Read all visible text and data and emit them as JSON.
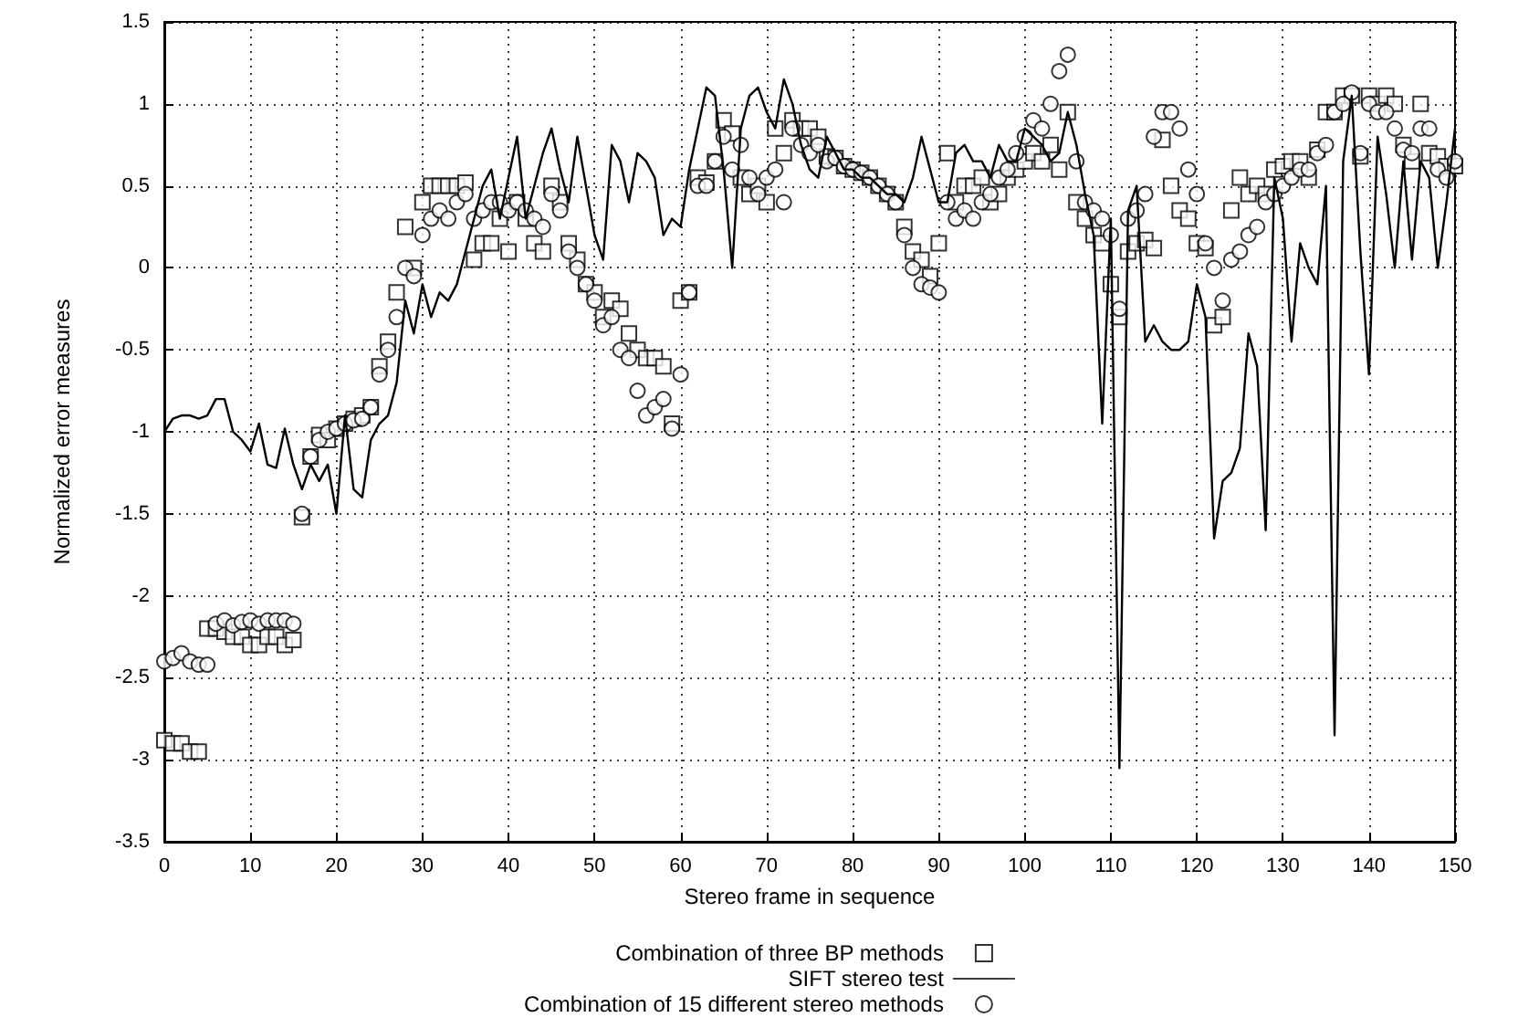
{
  "chart_data": {
    "type": "scatter",
    "xlabel": "Stereo frame in sequence",
    "ylabel": "Normalized error measures",
    "x": [
      0,
      1,
      2,
      3,
      4,
      5,
      6,
      7,
      8,
      9,
      10,
      11,
      12,
      13,
      14,
      15,
      16,
      17,
      18,
      19,
      20,
      21,
      22,
      23,
      24,
      25,
      26,
      27,
      28,
      29,
      30,
      31,
      32,
      33,
      34,
      35,
      36,
      37,
      38,
      39,
      40,
      41,
      42,
      43,
      44,
      45,
      46,
      47,
      48,
      49,
      50,
      51,
      52,
      53,
      54,
      55,
      56,
      57,
      58,
      59,
      60,
      61,
      62,
      63,
      64,
      65,
      66,
      67,
      68,
      69,
      70,
      71,
      72,
      73,
      74,
      75,
      76,
      77,
      78,
      79,
      80,
      81,
      82,
      83,
      84,
      85,
      86,
      87,
      88,
      89,
      90,
      91,
      92,
      93,
      94,
      95,
      96,
      97,
      98,
      99,
      100,
      101,
      102,
      103,
      104,
      105,
      106,
      107,
      108,
      109,
      110,
      111,
      112,
      113,
      114,
      115,
      116,
      117,
      118,
      119,
      120,
      121,
      122,
      123,
      124,
      125,
      126,
      127,
      128,
      129,
      130,
      131,
      132,
      133,
      134,
      135,
      136,
      137,
      138,
      139,
      140,
      141,
      142,
      143,
      144,
      145,
      146,
      147,
      148,
      149,
      150
    ],
    "series": [
      {
        "name": "Combination of three BP methods",
        "type": "scatter",
        "marker": "square",
        "color": "#000000",
        "values": [
          -2.88,
          -2.9,
          -2.9,
          -2.95,
          -2.95,
          -2.2,
          -2.2,
          -2.22,
          -2.25,
          -2.25,
          -2.3,
          -2.3,
          -2.25,
          -2.25,
          -2.3,
          -2.27,
          -1.52,
          -1.15,
          -1.02,
          -1.05,
          -0.98,
          -0.95,
          -0.92,
          -0.9,
          -0.85,
          -0.6,
          -0.45,
          -0.15,
          0.25,
          0.0,
          0.4,
          0.5,
          0.5,
          0.5,
          0.5,
          0.52,
          0.05,
          0.15,
          0.15,
          0.3,
          0.1,
          0.4,
          0.3,
          0.15,
          0.1,
          0.5,
          0.4,
          0.15,
          0.05,
          -0.1,
          -0.15,
          -0.3,
          -0.2,
          -0.25,
          -0.4,
          -0.5,
          -0.55,
          -0.55,
          -0.6,
          -0.95,
          -0.2,
          -0.15,
          0.55,
          0.52,
          0.65,
          0.9,
          0.82,
          0.55,
          0.45,
          0.5,
          0.4,
          0.85,
          0.7,
          0.9,
          0.85,
          0.85,
          0.8,
          0.68,
          0.67,
          0.62,
          0.6,
          0.58,
          0.55,
          0.5,
          0.45,
          0.4,
          0.25,
          0.1,
          0.05,
          -0.05,
          0.15,
          0.7,
          0.4,
          0.5,
          0.5,
          0.55,
          0.4,
          0.45,
          0.55,
          0.6,
          0.65,
          0.7,
          0.65,
          0.75,
          0.6,
          0.95,
          0.4,
          0.3,
          0.2,
          0.15,
          -0.1,
          -0.3,
          0.1,
          0.15,
          0.17,
          0.12,
          0.78,
          0.5,
          0.35,
          0.3,
          0.15,
          0.12,
          -0.35,
          -0.3,
          0.35,
          0.55,
          0.45,
          0.5,
          0.45,
          0.6,
          0.62,
          0.65,
          0.65,
          0.55,
          0.72,
          0.95,
          0.95,
          1.05,
          1.05,
          0.68,
          1.05,
          1.0,
          1.05,
          1.0,
          0.75,
          0.65,
          1.0,
          0.7,
          0.68,
          0.62,
          0.62
        ]
      },
      {
        "name": "SIFT stereo test",
        "type": "line",
        "marker": "none",
        "line_style": "solid",
        "color": "#000000",
        "values": [
          -1.0,
          -0.92,
          -0.9,
          -0.9,
          -0.92,
          -0.9,
          -0.8,
          -0.8,
          -1.0,
          -1.05,
          -1.12,
          -0.95,
          -1.2,
          -1.22,
          -0.98,
          -1.2,
          -1.35,
          -1.2,
          -1.3,
          -1.2,
          -1.5,
          -0.9,
          -1.35,
          -1.4,
          -1.05,
          -0.95,
          -0.9,
          -0.7,
          -0.2,
          -0.4,
          -0.1,
          -0.3,
          -0.15,
          -0.2,
          -0.1,
          0.1,
          0.3,
          0.5,
          0.6,
          0.3,
          0.55,
          0.8,
          0.3,
          0.5,
          0.7,
          0.85,
          0.6,
          0.4,
          0.8,
          0.5,
          0.2,
          0.05,
          0.75,
          0.65,
          0.4,
          0.7,
          0.65,
          0.55,
          0.2,
          0.3,
          0.25,
          0.6,
          0.85,
          1.1,
          1.05,
          0.6,
          0.0,
          0.85,
          1.05,
          1.1,
          0.95,
          0.85,
          1.15,
          1.0,
          0.75,
          0.6,
          0.55,
          0.8,
          0.7,
          0.6,
          0.6,
          0.55,
          0.55,
          0.5,
          0.45,
          0.45,
          0.4,
          0.55,
          0.8,
          0.6,
          0.4,
          0.4,
          0.7,
          0.75,
          0.65,
          0.65,
          0.55,
          0.75,
          0.65,
          0.65,
          0.85,
          0.8,
          0.75,
          0.65,
          0.7,
          0.95,
          0.75,
          0.45,
          0.2,
          -0.95,
          0.3,
          -3.05,
          0.35,
          0.5,
          -0.45,
          -0.35,
          -0.45,
          -0.5,
          -0.5,
          -0.45,
          -0.1,
          -0.3,
          -1.65,
          -1.3,
          -1.25,
          -1.1,
          -0.4,
          -0.6,
          -1.6,
          0.55,
          0.3,
          -0.45,
          0.15,
          0.0,
          -0.1,
          0.5,
          -2.85,
          0.65,
          1.05,
          0.1,
          -0.65,
          0.8,
          0.45,
          0.0,
          0.65,
          0.05,
          0.65,
          0.55,
          0.0,
          0.4,
          0.85
        ]
      },
      {
        "name": "Combination of 15 different stereo methods",
        "type": "scatter",
        "marker": "circle",
        "color": "#000000",
        "values": [
          -2.4,
          -2.38,
          -2.35,
          -2.4,
          -2.42,
          -2.42,
          -2.17,
          -2.15,
          -2.18,
          -2.16,
          -2.15,
          -2.17,
          -2.15,
          -2.15,
          -2.15,
          -2.17,
          -1.5,
          -1.15,
          -1.05,
          -1.0,
          -0.98,
          -0.95,
          -0.93,
          -0.92,
          -0.85,
          -0.65,
          -0.5,
          -0.3,
          0.0,
          -0.05,
          0.2,
          0.3,
          0.35,
          0.3,
          0.4,
          0.45,
          0.3,
          0.35,
          0.4,
          0.4,
          0.35,
          0.4,
          0.35,
          0.3,
          0.25,
          0.45,
          0.35,
          0.1,
          0.0,
          -0.1,
          -0.2,
          -0.35,
          -0.3,
          -0.5,
          -0.55,
          -0.75,
          -0.9,
          -0.85,
          -0.8,
          -0.98,
          -0.65,
          -0.15,
          0.5,
          0.5,
          0.65,
          0.8,
          0.6,
          0.75,
          0.55,
          0.45,
          0.55,
          0.6,
          0.4,
          0.85,
          0.75,
          0.7,
          0.75,
          0.65,
          0.67,
          0.62,
          0.6,
          0.58,
          0.55,
          0.5,
          0.45,
          0.4,
          0.2,
          0.0,
          -0.1,
          -0.12,
          -0.15,
          0.4,
          0.3,
          0.35,
          0.3,
          0.4,
          0.45,
          0.55,
          0.6,
          0.7,
          0.8,
          0.9,
          0.85,
          1.0,
          1.2,
          1.3,
          0.65,
          0.4,
          0.35,
          0.3,
          0.2,
          -0.25,
          0.3,
          0.35,
          0.45,
          0.8,
          0.95,
          0.95,
          0.85,
          0.6,
          0.45,
          0.15,
          0.0,
          -0.2,
          0.05,
          0.1,
          0.2,
          0.25,
          0.4,
          0.45,
          0.5,
          0.55,
          0.6,
          0.6,
          0.7,
          0.75,
          0.95,
          1.0,
          1.07,
          0.7,
          1.0,
          0.95,
          0.95,
          0.85,
          0.72,
          0.7,
          0.85,
          0.85,
          0.6,
          0.55,
          0.65
        ]
      }
    ],
    "xlim": [
      0,
      150
    ],
    "xticks": [
      0,
      10,
      20,
      30,
      40,
      50,
      60,
      70,
      80,
      90,
      100,
      110,
      120,
      130,
      140,
      150
    ],
    "ylim": [
      -3.5,
      1.5
    ],
    "yticks": [
      -3.5,
      -3,
      -2.5,
      -2,
      -1.5,
      -1,
      -0.5,
      0,
      0.5,
      1,
      1.5
    ],
    "grid": true,
    "legend": "bottom"
  }
}
